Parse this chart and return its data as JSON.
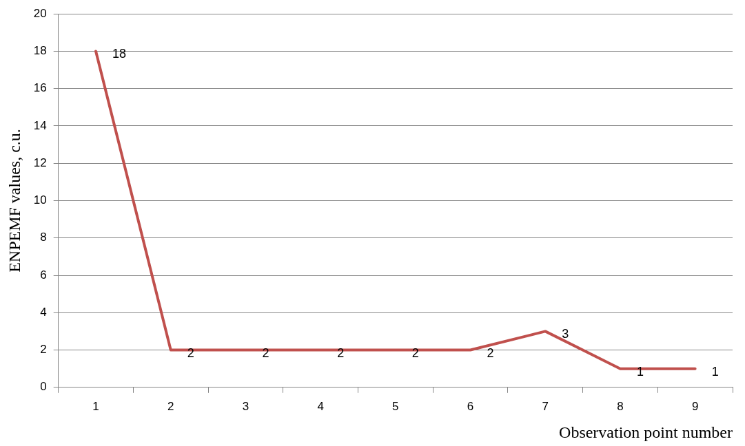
{
  "chart_data": {
    "type": "line",
    "xlabel": "Observation point number",
    "ylabel": "ENPEMF values, c.u.",
    "categories": [
      "1",
      "2",
      "3",
      "4",
      "5",
      "6",
      "7",
      "8",
      "9"
    ],
    "series": [
      {
        "color": "#c0504d",
        "values": [
          18,
          2,
          2,
          2,
          2,
          2,
          3,
          1,
          1
        ]
      }
    ],
    "ylim": [
      0,
      20
    ],
    "yticks": [
      0,
      2,
      4,
      6,
      8,
      10,
      12,
      14,
      16,
      18,
      20
    ],
    "grid": "y",
    "legend": false,
    "marker": "none",
    "line_style": "solid",
    "data_labels": true
  }
}
